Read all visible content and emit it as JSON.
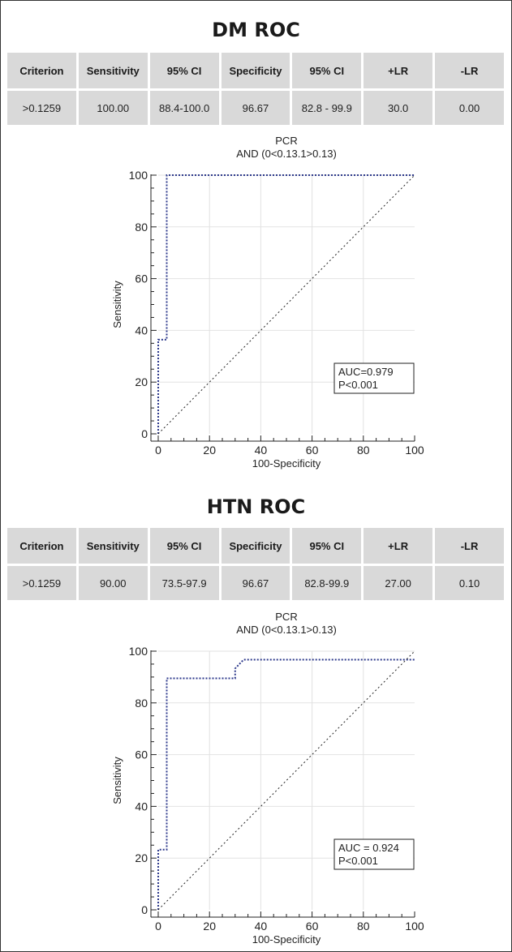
{
  "columns": [
    "Criterion",
    "Sensitivity",
    "95% CI",
    "Specificity",
    "95% CI",
    "+LR",
    "-LR"
  ],
  "chart_data": [
    {
      "type": "line",
      "section_title": "DM ROC",
      "table": [
        ">0.1259",
        "100.00",
        "88.4-100.0",
        "96.67",
        "82.8 - 99.9",
        "30.0",
        "0.00"
      ],
      "title": "PCR",
      "subtitle": "AND (0<0.13.1>0.13)",
      "xlabel": "100-Specificity",
      "ylabel": "Sensitivity",
      "xlim": [
        0,
        100
      ],
      "ylim": [
        0,
        100
      ],
      "xticks": [
        "0",
        "20",
        "40",
        "60",
        "80",
        "100"
      ],
      "yticks": [
        "0",
        "20",
        "40",
        "60",
        "80",
        "100"
      ],
      "grid": true,
      "series": [
        {
          "x": [
            0,
            0,
            3.33,
            3.33,
            100
          ],
          "y": [
            0,
            36.4,
            36.4,
            100,
            100
          ],
          "color": "#2e3a8c",
          "style": "dotted"
        },
        {
          "x": [
            0,
            100
          ],
          "y": [
            0,
            100
          ],
          "color": "#222222",
          "style": "dotted"
        }
      ],
      "annotation": [
        "AUC=0.979",
        "P<0.001"
      ]
    },
    {
      "type": "line",
      "section_title": "HTN ROC",
      "table": [
        ">0.1259",
        "90.00",
        "73.5-97.9",
        "96.67",
        "82.8-99.9",
        "27.00",
        "0.10"
      ],
      "title": "PCR",
      "subtitle": "AND (0<0.13.1>0.13)",
      "xlabel": "100-Specificity",
      "ylabel": "Sensitivity",
      "xlim": [
        0,
        100
      ],
      "ylim": [
        0,
        100
      ],
      "xticks": [
        "0",
        "20",
        "40",
        "60",
        "80",
        "100"
      ],
      "yticks": [
        "0",
        "20",
        "40",
        "60",
        "80",
        "100"
      ],
      "grid": true,
      "series": [
        {
          "x": [
            0,
            0,
            3.33,
            3.33,
            30,
            30,
            33.3,
            100
          ],
          "y": [
            0,
            23.3,
            23.3,
            89.5,
            89.5,
            93.3,
            96.7,
            96.7
          ],
          "color": "#2e3a8c",
          "style": "dotted"
        },
        {
          "x": [
            0,
            100
          ],
          "y": [
            0,
            100
          ],
          "color": "#222222",
          "style": "dotted"
        }
      ],
      "annotation": [
        "AUC = 0.924",
        "P<0.001"
      ]
    }
  ]
}
